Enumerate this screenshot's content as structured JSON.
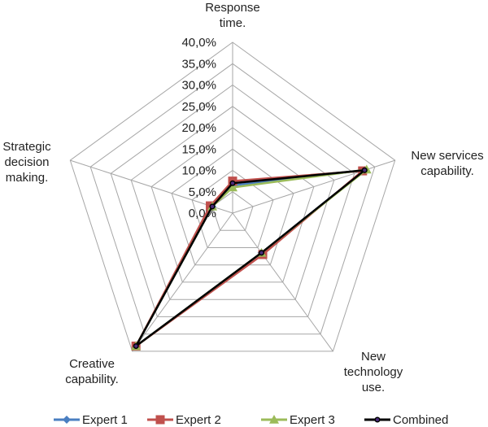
{
  "chart_data": {
    "type": "radar",
    "title": "",
    "axes": [
      {
        "lines": [
          "Response",
          "time."
        ]
      },
      {
        "lines": [
          "New services",
          "capability."
        ]
      },
      {
        "lines": [
          "New",
          "technology",
          "use."
        ]
      },
      {
        "lines": [
          "Creative",
          "capability."
        ]
      },
      {
        "lines": [
          "Strategic",
          "decision",
          "making."
        ]
      }
    ],
    "rlim": [
      0,
      40
    ],
    "ticks": [
      "0,0%",
      "5,0%",
      "10,0%",
      "15,0%",
      "20,0%",
      "25,0%",
      "30,0%",
      "35,0%",
      "40,0%"
    ],
    "tick_values": [
      0,
      5,
      10,
      15,
      20,
      25,
      30,
      35,
      40
    ],
    "grid": true,
    "legend_position": "bottom",
    "series": [
      {
        "name": "Expert 1",
        "values": [
          6.5,
          32.5,
          11.5,
          38.5,
          5.0
        ],
        "color": "#4a7fc1",
        "marker": "diamond"
      },
      {
        "name": "Expert 2",
        "values": [
          7.5,
          32.0,
          12.0,
          38.5,
          5.5
        ],
        "color": "#c0504d",
        "marker": "square"
      },
      {
        "name": "Expert 3",
        "values": [
          6.0,
          33.0,
          11.5,
          38.5,
          5.0
        ],
        "color": "#9bbb59",
        "marker": "triangle"
      },
      {
        "name": "Combined",
        "values": [
          7.0,
          32.5,
          11.5,
          38.5,
          5.0
        ],
        "color": "#000000",
        "marker": "circle"
      }
    ]
  }
}
